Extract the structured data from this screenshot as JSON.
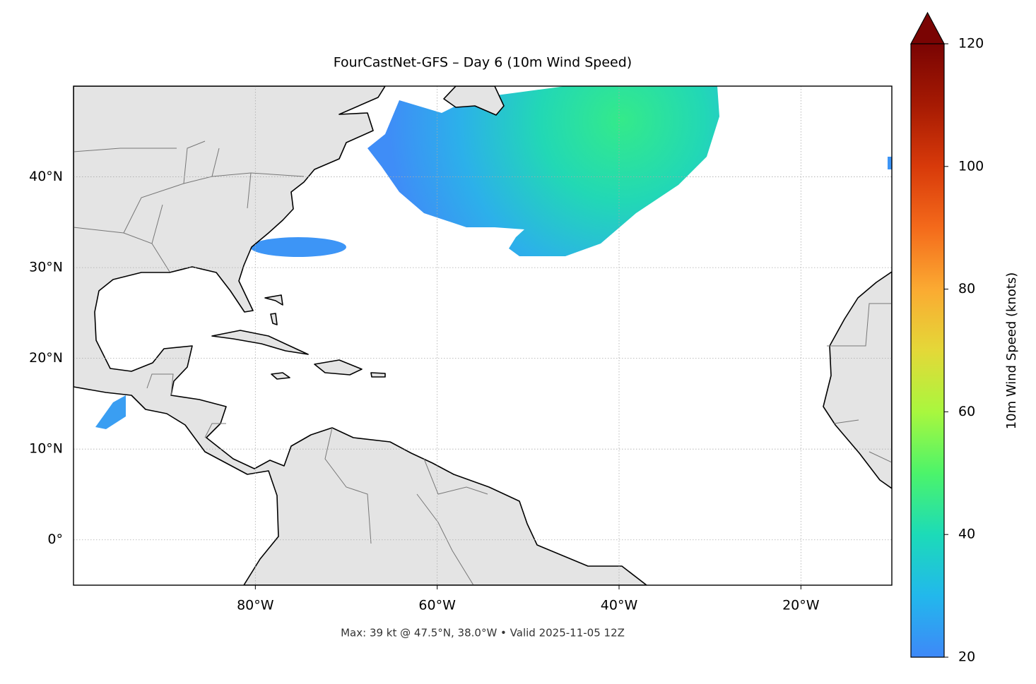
{
  "chart_data": {
    "type": "map",
    "title": "FourCastNet-GFS – Day 6 (10m Wind Speed)",
    "annotation": "Max: 39 kt @ 47.5°N, 38.0°W • Valid 2025-11-05 12Z",
    "xlim": [
      -100,
      -10
    ],
    "ylim": [
      -5,
      50
    ],
    "xticks": [
      {
        "value": -80,
        "label": "80°W"
      },
      {
        "value": -60,
        "label": "60°W"
      },
      {
        "value": -40,
        "label": "40°W"
      },
      {
        "value": -20,
        "label": "20°W"
      }
    ],
    "yticks": [
      {
        "value": 0,
        "label": "0°"
      },
      {
        "value": 10,
        "label": "10°N"
      },
      {
        "value": 20,
        "label": "20°N"
      },
      {
        "value": 30,
        "label": "30°N"
      },
      {
        "value": 40,
        "label": "40°N"
      }
    ],
    "grid": true,
    "colorbar": {
      "label": "10m Wind Speed (knots)",
      "lim": [
        20,
        120
      ],
      "ticks": [
        20,
        40,
        60,
        80,
        100,
        120
      ],
      "extend": "max"
    }
  }
}
